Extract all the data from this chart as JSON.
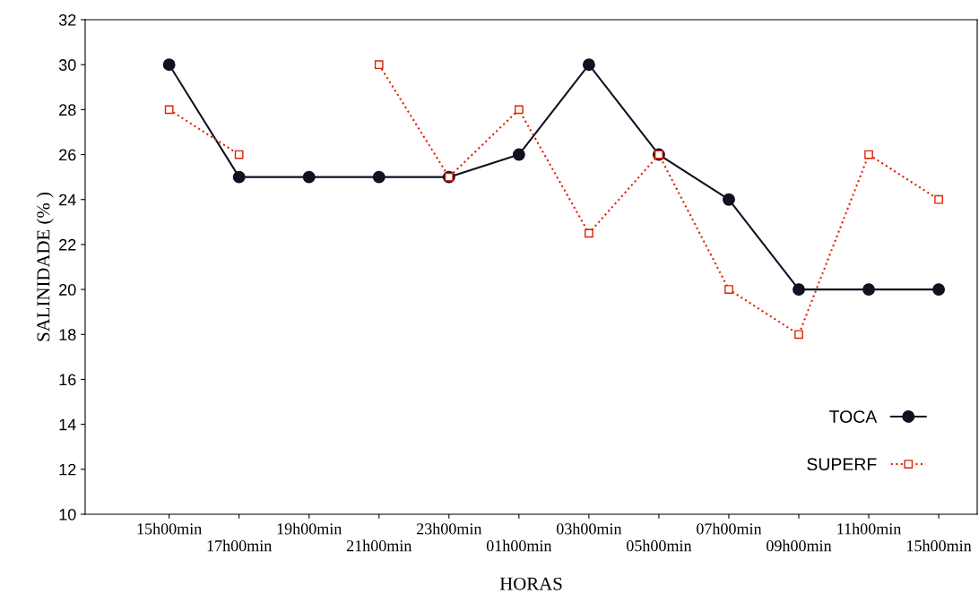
{
  "chart_data": {
    "type": "line",
    "xlabel": "HORAS",
    "ylabel": "SALINIDADE (% )",
    "categories": [
      "15h00min",
      "17h00min",
      "19h00min",
      "21h00min",
      "23h00min",
      "01h00min",
      "03h00min",
      "05h00min",
      "07h00min",
      "09h00min",
      "11h00min",
      "15h00min"
    ],
    "series": [
      {
        "name": "TOCA",
        "color": "#111122",
        "marker": "circle",
        "line_style": "solid",
        "values": [
          30,
          25,
          25,
          25,
          25,
          26,
          30,
          26,
          24,
          20,
          20,
          20
        ]
      },
      {
        "name": "SUPERF",
        "color": "#dd2200",
        "marker": "square",
        "line_style": "dotted",
        "values": [
          28,
          26,
          null,
          30,
          25,
          28,
          22.5,
          26,
          20,
          18,
          26,
          24
        ]
      }
    ],
    "ylim": [
      10,
      32
    ],
    "yticks": [
      10,
      12,
      14,
      16,
      18,
      20,
      22,
      24,
      26,
      28,
      30,
      32
    ],
    "grid": false,
    "legend": "bottom right"
  }
}
